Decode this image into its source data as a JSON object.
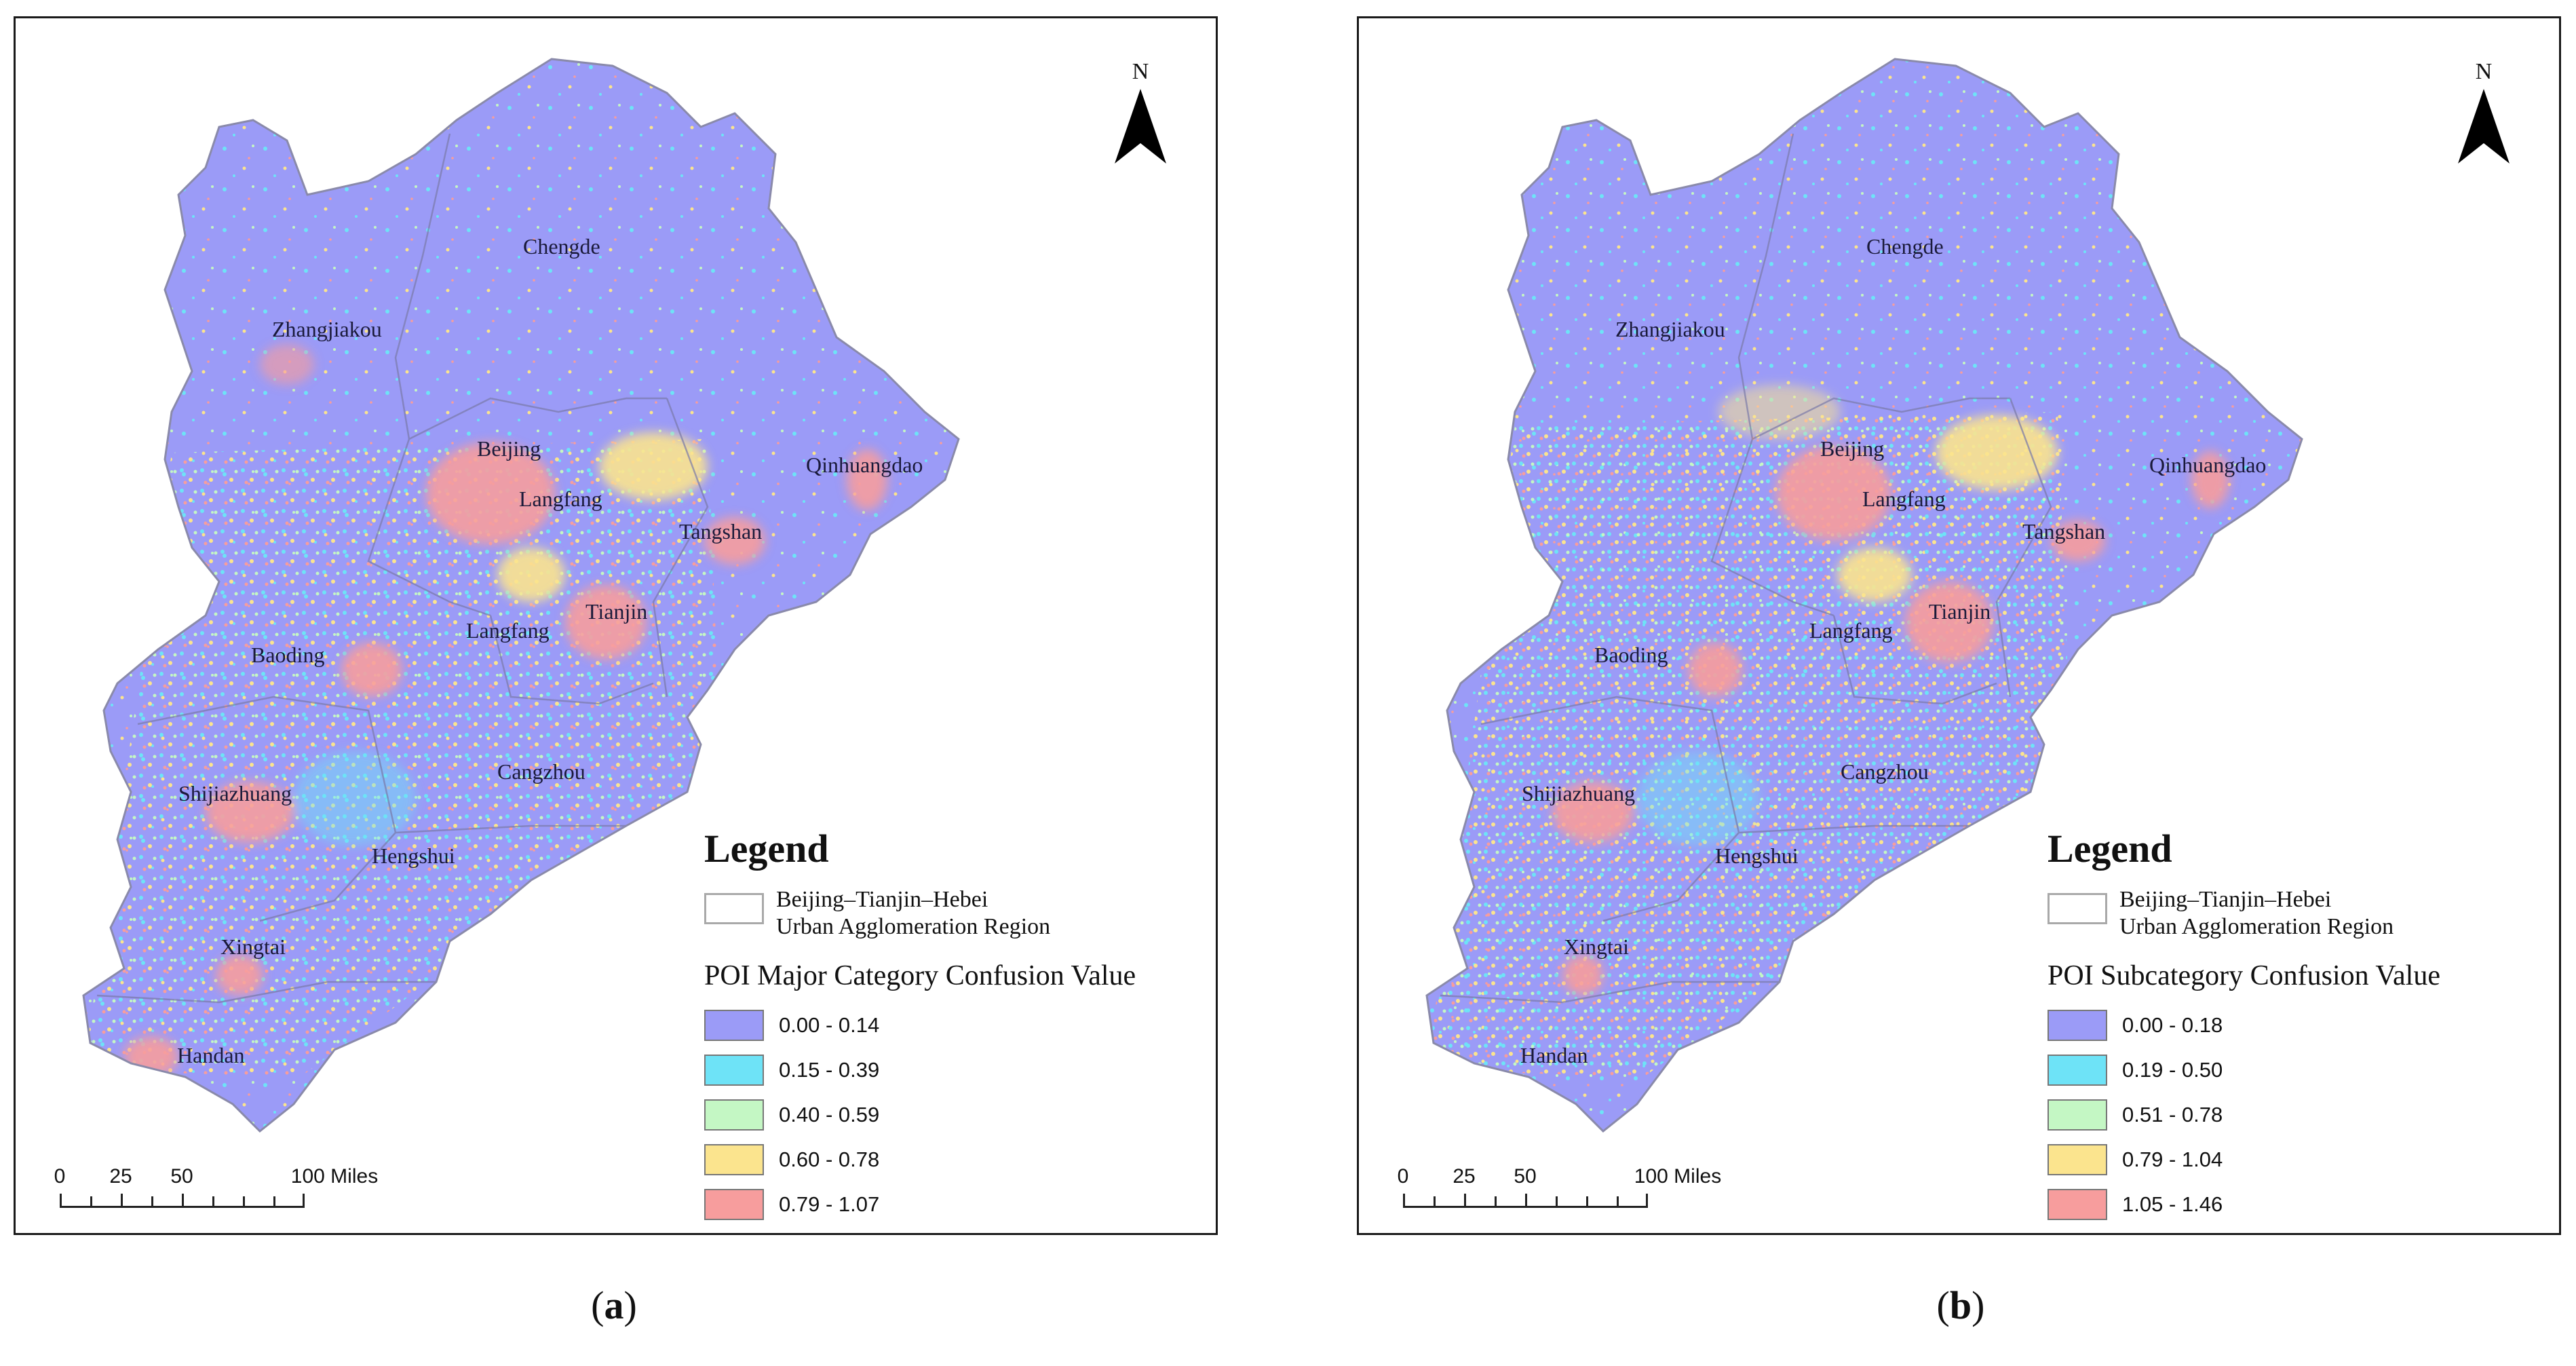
{
  "panels": [
    {
      "caption_letter": "a",
      "north_label": "N",
      "cities": [
        {
          "name": "Chengde"
        },
        {
          "name": "Zhangjiakou"
        },
        {
          "name": "Beijing"
        },
        {
          "name": "Qinhuangdao"
        },
        {
          "name": "Langfang"
        },
        {
          "name": "Tangshan"
        },
        {
          "name": "Tianjin"
        },
        {
          "name": "Langfang"
        },
        {
          "name": "Baoding"
        },
        {
          "name": "Cangzhou"
        },
        {
          "name": "Shijiazhuang"
        },
        {
          "name": "Hengshui"
        },
        {
          "name": "Xingtai"
        },
        {
          "name": "Handan"
        }
      ],
      "legend": {
        "title": "Legend",
        "region_line1": "Beijing–Tianjin–Hebei",
        "region_line2": "Urban Agglomeration Region",
        "variable": "POI Major Category Confusion Value",
        "classes": [
          {
            "label": "0.00 - 0.14",
            "color": "#9b9bf7"
          },
          {
            "label": "0.15 - 0.39",
            "color": "#6ee3f7"
          },
          {
            "label": "0.40 - 0.59",
            "color": "#c4f7c4"
          },
          {
            "label": "0.60 - 0.78",
            "color": "#fbe48e"
          },
          {
            "label": "0.79 - 1.07",
            "color": "#f79d9d"
          }
        ]
      },
      "scale": {
        "labels": [
          "0",
          "25",
          "50",
          "100 Miles"
        ]
      }
    },
    {
      "caption_letter": "b",
      "north_label": "N",
      "cities": [
        {
          "name": "Chengde"
        },
        {
          "name": "Zhangjiakou"
        },
        {
          "name": "Beijing"
        },
        {
          "name": "Qinhuangdao"
        },
        {
          "name": "Langfang"
        },
        {
          "name": "Tangshan"
        },
        {
          "name": "Tianjin"
        },
        {
          "name": "Langfang"
        },
        {
          "name": "Baoding"
        },
        {
          "name": "Cangzhou"
        },
        {
          "name": "Shijiazhuang"
        },
        {
          "name": "Hengshui"
        },
        {
          "name": "Xingtai"
        },
        {
          "name": "Handan"
        }
      ],
      "legend": {
        "title": "Legend",
        "region_line1": "Beijing–Tianjin–Hebei",
        "region_line2": "Urban Agglomeration Region",
        "variable": "POI Subcategory Confusion Value",
        "classes": [
          {
            "label": "0.00 - 0.18",
            "color": "#9b9bf7"
          },
          {
            "label": "0.19 - 0.50",
            "color": "#6ee3f7"
          },
          {
            "label": "0.51 - 0.78",
            "color": "#c4f7c4"
          },
          {
            "label": "0.79 - 1.04",
            "color": "#fbe48e"
          },
          {
            "label": "1.05 - 1.46",
            "color": "#f79d9d"
          }
        ]
      },
      "scale": {
        "labels": [
          "0",
          "25",
          "50",
          "100 Miles"
        ]
      }
    }
  ]
}
